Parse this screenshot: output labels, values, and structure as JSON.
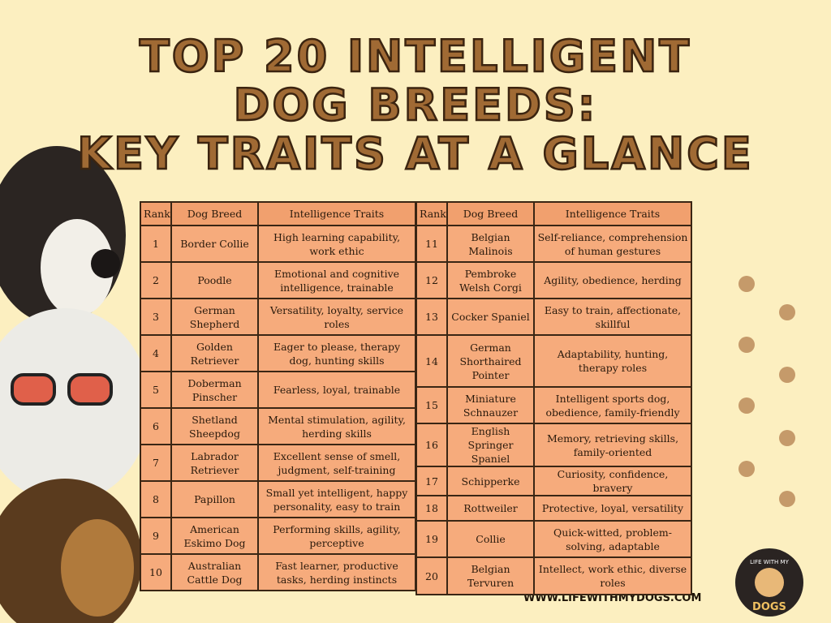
{
  "header": {
    "title_lines": [
      "TOP 20 INTELLIGENT",
      "DOG BREEDS:",
      "KEY TRAITS AT A GLANCE"
    ]
  },
  "tables": [
    {
      "columns": [
        "Rank",
        "Dog Breed",
        "Intelligence Traits"
      ],
      "rows": [
        [
          1,
          "Border Collie",
          "High learning capability, work ethic"
        ],
        [
          2,
          "Poodle",
          "Emotional and cognitive intelligence, trainable"
        ],
        [
          3,
          "German Shepherd",
          "Versatility, loyalty, service roles"
        ],
        [
          4,
          "Golden Retriever",
          "Eager to please, therapy dog, hunting skills"
        ],
        [
          5,
          "Doberman Pinscher",
          "Fearless, loyal, trainable"
        ],
        [
          6,
          "Shetland Sheepdog",
          "Mental stimulation, agility, herding skills"
        ],
        [
          7,
          "Labrador Retriever",
          "Excellent sense of smell, judgment, self-training"
        ],
        [
          8,
          "Papillon",
          "Small yet intelligent, happy personality, easy to train"
        ],
        [
          9,
          "American Eskimo Dog",
          "Performing skills, agility, perceptive"
        ],
        [
          10,
          "Australian Cattle Dog",
          "Fast learner, productive tasks, herding instincts"
        ]
      ]
    },
    {
      "columns": [
        "Rank",
        "Dog Breed",
        "Intelligence Traits"
      ],
      "rows": [
        [
          11,
          "Belgian Malinois",
          "Self-reliance, comprehension of human gestures"
        ],
        [
          12,
          "Pembroke Welsh Corgi",
          "Agility, obedience, herding"
        ],
        [
          13,
          "Cocker Spaniel",
          "Easy to train, affectionate, skillful"
        ],
        [
          14,
          "German Shorthaired Pointer",
          "Adaptability, hunting, therapy roles"
        ],
        [
          15,
          "Miniature Schnauzer",
          "Intelligent sports dog, obedience, family-friendly"
        ],
        [
          16,
          "English Springer Spaniel",
          "Memory, retrieving skills, family-oriented"
        ],
        [
          17,
          "Schipperke",
          "Curiosity, confidence, bravery"
        ],
        [
          18,
          "Rottweiler",
          "Protective, loyal, versatility"
        ],
        [
          19,
          "Collie",
          "Quick-witted, problem-solving, adaptable"
        ],
        [
          20,
          "Belgian Tervuren",
          "Intellect, work ethic, diverse roles"
        ]
      ]
    }
  ],
  "footer": {
    "website": "WWW.LIFEWITHMYDOGS.COM",
    "logo_top": "LIFE WITH MY",
    "logo_bottom": "DOGS"
  }
}
